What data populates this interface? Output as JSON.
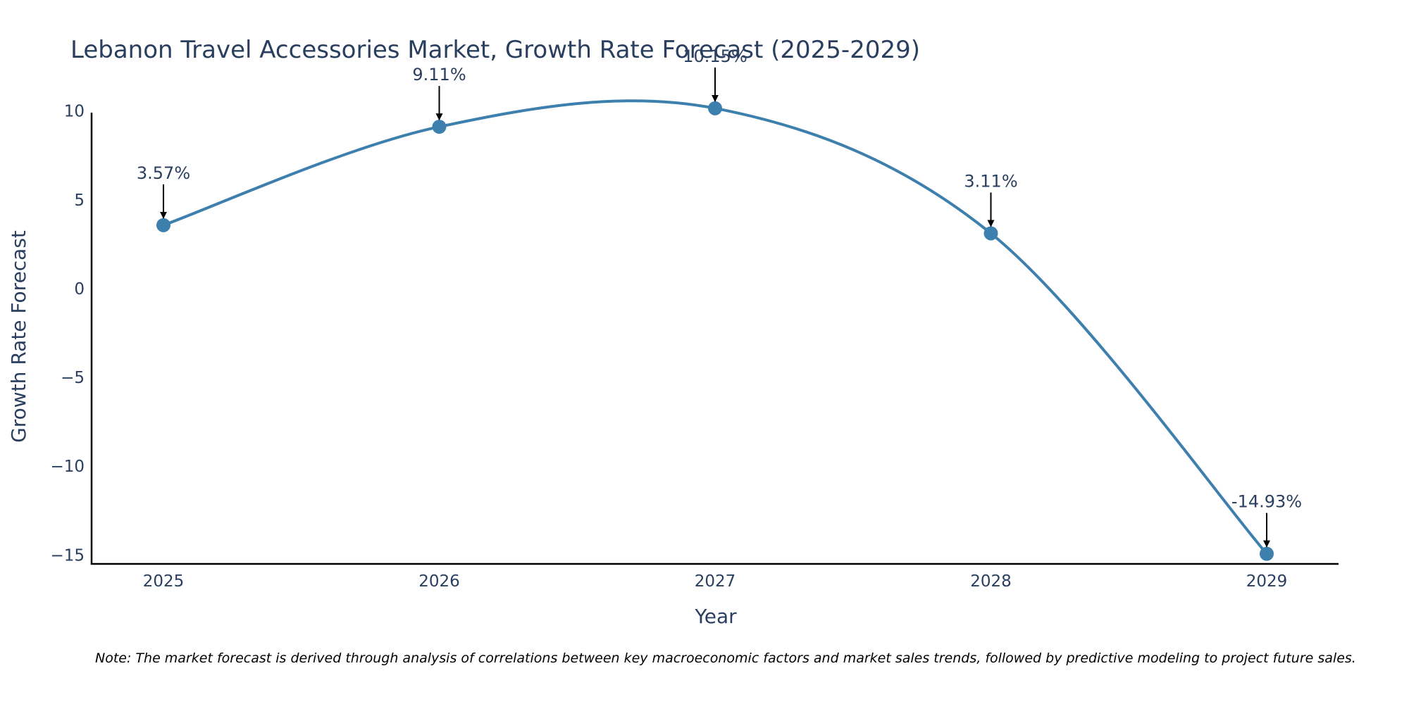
{
  "chart_data": {
    "type": "line",
    "title": "Lebanon Travel Accessories Market, Growth Rate Forecast (2025-2029)",
    "xlabel": "Year",
    "ylabel": "Growth Rate Forecast",
    "categories": [
      "2025",
      "2026",
      "2027",
      "2028",
      "2029"
    ],
    "series": [
      {
        "name": "Growth Rate Forecast",
        "values": [
          3.57,
          9.11,
          10.15,
          3.11,
          -14.93
        ]
      }
    ],
    "data_labels": [
      "3.57%",
      "9.11%",
      "10.15%",
      "3.11%",
      "-14.93%"
    ],
    "yticks": [
      10,
      5,
      0,
      -5,
      -10,
      -15
    ],
    "ytick_labels": [
      "10",
      "5",
      "0",
      "−5",
      "−10",
      "−15"
    ],
    "ylim": [
      -15.5,
      10.5
    ],
    "grid": false,
    "line_color": "#3d7fad",
    "marker_color": "#3d7fad",
    "note": "Note: The market forecast is derived through analysis of correlations between key macroeconomic factors and market sales trends, followed by predictive modeling to project future sales."
  }
}
